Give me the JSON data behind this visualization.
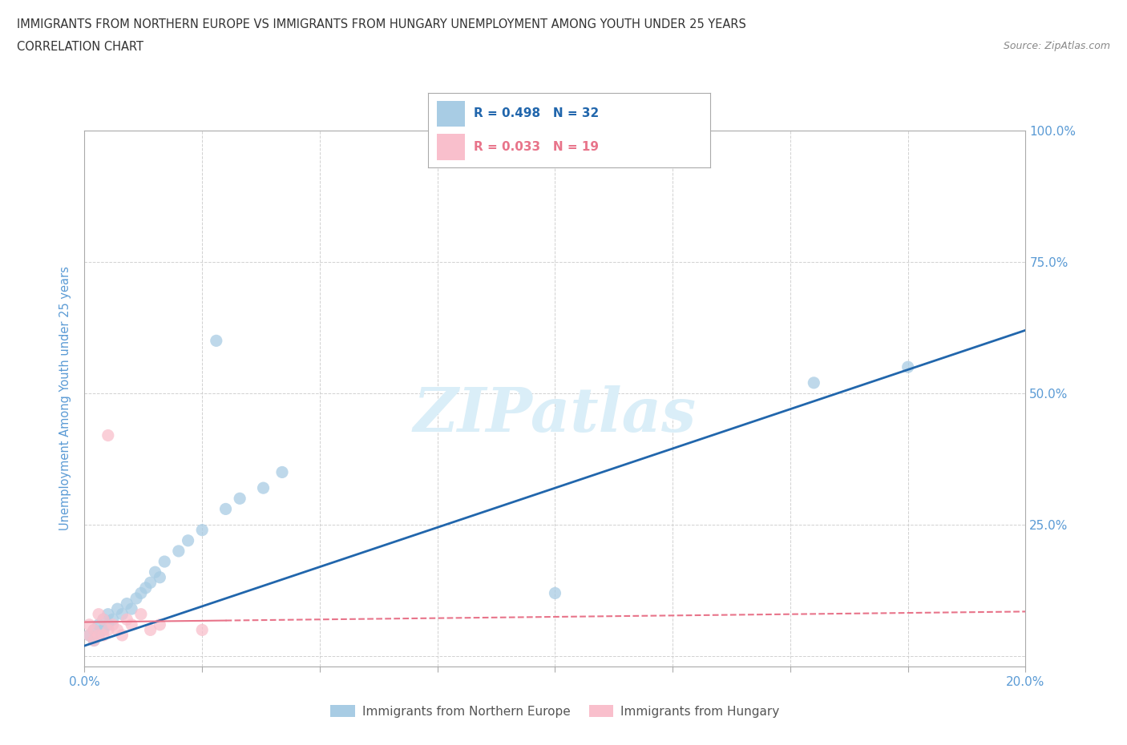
{
  "title_line1": "IMMIGRANTS FROM NORTHERN EUROPE VS IMMIGRANTS FROM HUNGARY UNEMPLOYMENT AMONG YOUTH UNDER 25 YEARS",
  "title_line2": "CORRELATION CHART",
  "source_text": "Source: ZipAtlas.com",
  "ylabel": "Unemployment Among Youth under 25 years",
  "xlim": [
    0.0,
    0.2
  ],
  "ylim": [
    -0.02,
    1.0
  ],
  "ytick_values": [
    0.0,
    0.25,
    0.5,
    0.75,
    1.0
  ],
  "ytick_labels": [
    "",
    "25.0%",
    "50.0%",
    "75.0%",
    "100.0%"
  ],
  "r_northern": 0.498,
  "n_northern": 32,
  "r_hungary": 0.033,
  "n_hungary": 19,
  "color_northern": "#a8cce4",
  "color_hungary": "#f9bfcc",
  "color_northern_line": "#2166ac",
  "color_hungary_line": "#e8748a",
  "northern_europe_x": [
    0.001,
    0.002,
    0.002,
    0.003,
    0.003,
    0.004,
    0.004,
    0.005,
    0.005,
    0.006,
    0.007,
    0.008,
    0.009,
    0.01,
    0.011,
    0.012,
    0.013,
    0.014,
    0.015,
    0.016,
    0.017,
    0.02,
    0.022,
    0.025,
    0.028,
    0.03,
    0.033,
    0.038,
    0.042,
    0.1,
    0.155,
    0.175
  ],
  "northern_europe_y": [
    0.04,
    0.03,
    0.05,
    0.04,
    0.06,
    0.05,
    0.07,
    0.06,
    0.08,
    0.07,
    0.09,
    0.08,
    0.1,
    0.09,
    0.11,
    0.12,
    0.13,
    0.14,
    0.16,
    0.15,
    0.18,
    0.2,
    0.22,
    0.24,
    0.6,
    0.28,
    0.3,
    0.32,
    0.35,
    0.12,
    0.52,
    0.55
  ],
  "hungary_x": [
    0.001,
    0.001,
    0.002,
    0.002,
    0.003,
    0.003,
    0.004,
    0.004,
    0.005,
    0.005,
    0.006,
    0.007,
    0.008,
    0.009,
    0.01,
    0.012,
    0.014,
    0.016,
    0.025
  ],
  "hungary_y": [
    0.04,
    0.06,
    0.03,
    0.05,
    0.04,
    0.08,
    0.04,
    0.07,
    0.05,
    0.42,
    0.06,
    0.05,
    0.04,
    0.07,
    0.06,
    0.08,
    0.05,
    0.06,
    0.05
  ],
  "watermark_text": "ZIPatlas",
  "watermark_color": "#daeef8",
  "background_color": "#ffffff",
  "grid_color": "#cccccc",
  "title_color": "#333333",
  "axis_label_color": "#5b9bd5",
  "tick_label_color": "#5b9bd5"
}
